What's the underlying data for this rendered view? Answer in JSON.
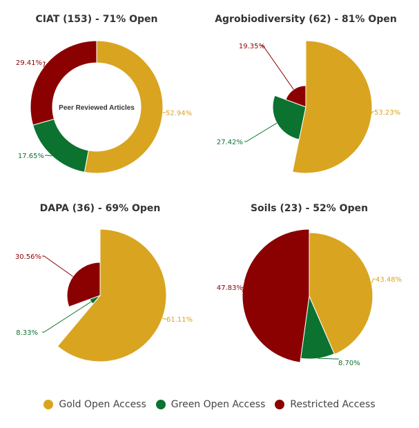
{
  "chart_data": [
    {
      "type": "pie",
      "variant": "donut",
      "title": "CIAT (153) - 71% Open",
      "center_label": "Peer Reviewed Articles",
      "slices": [
        {
          "name": "Gold Open Access",
          "value": 52.94,
          "label": "52.94%"
        },
        {
          "name": "Green Open Access",
          "value": 17.65,
          "label": "17.65%"
        },
        {
          "name": "Restricted Access",
          "value": 29.41,
          "label": "29.41%"
        }
      ]
    },
    {
      "type": "pie",
      "variant": "variable-radius",
      "title": "Agrobiodiversity (62) - 81% Open",
      "slices": [
        {
          "name": "Gold Open Access",
          "value": 53.23,
          "label": "53.23%"
        },
        {
          "name": "Green Open Access",
          "value": 27.42,
          "label": "27.42%"
        },
        {
          "name": "Restricted Access",
          "value": 19.35,
          "label": "19.35%"
        }
      ]
    },
    {
      "type": "pie",
      "variant": "variable-radius",
      "title": "DAPA (36) - 69% Open",
      "slices": [
        {
          "name": "Gold Open Access",
          "value": 61.11,
          "label": "61.11%"
        },
        {
          "name": "Green Open Access",
          "value": 8.33,
          "label": "8.33%"
        },
        {
          "name": "Restricted Access",
          "value": 30.56,
          "label": "30.56%"
        }
      ]
    },
    {
      "type": "pie",
      "variant": "variable-radius",
      "title": "Soils (23) - 52% Open",
      "slices": [
        {
          "name": "Gold Open Access",
          "value": 43.48,
          "label": "43.48%"
        },
        {
          "name": "Green Open Access",
          "value": 8.7,
          "label": "8.70%"
        },
        {
          "name": "Restricted Access",
          "value": 47.83,
          "label": "47.83%"
        }
      ]
    }
  ],
  "legend": [
    {
      "label": "Gold Open Access",
      "color": "#D9A420"
    },
    {
      "label": "Green Open Access",
      "color": "#0B7230"
    },
    {
      "label": "Restricted Access",
      "color": "#8B0000"
    }
  ],
  "colors": {
    "gold": "#D9A420",
    "green": "#0B7230",
    "restricted": "#8B0000",
    "title_text": "#333333"
  }
}
